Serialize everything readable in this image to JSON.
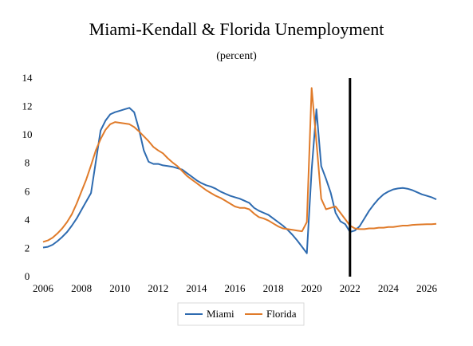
{
  "chart_data": {
    "type": "line",
    "title": "Miami-Kendall & Florida Unemployment",
    "subtitle": "(percent)",
    "xlabel": "",
    "ylabel": "",
    "xlim": [
      2006,
      2026.5
    ],
    "ylim": [
      0,
      14
    ],
    "x_ticks": [
      "2006",
      "2008",
      "2010",
      "2012",
      "2014",
      "2016",
      "2018",
      "2020",
      "2022",
      "2024",
      "2026"
    ],
    "y_ticks": [
      "0",
      "2",
      "4",
      "6",
      "8",
      "10",
      "12",
      "14"
    ],
    "grid": false,
    "legend_position": "bottom",
    "vertical_marker_x": 2022,
    "series": [
      {
        "name": "Miami",
        "color": "#2e6bb0",
        "points": [
          [
            2006.0,
            2.05
          ],
          [
            2006.25,
            2.1
          ],
          [
            2006.5,
            2.25
          ],
          [
            2006.75,
            2.5
          ],
          [
            2007.0,
            2.8
          ],
          [
            2007.25,
            3.15
          ],
          [
            2007.5,
            3.6
          ],
          [
            2007.75,
            4.1
          ],
          [
            2008.0,
            4.7
          ],
          [
            2008.25,
            5.3
          ],
          [
            2008.5,
            5.9
          ],
          [
            2008.75,
            8.1
          ],
          [
            2009.0,
            10.3
          ],
          [
            2009.25,
            11.0
          ],
          [
            2009.5,
            11.45
          ],
          [
            2009.75,
            11.6
          ],
          [
            2010.0,
            11.7
          ],
          [
            2010.25,
            11.8
          ],
          [
            2010.5,
            11.9
          ],
          [
            2010.75,
            11.6
          ],
          [
            2011.0,
            10.4
          ],
          [
            2011.25,
            8.9
          ],
          [
            2011.5,
            8.1
          ],
          [
            2011.75,
            7.95
          ],
          [
            2012.0,
            7.95
          ],
          [
            2012.25,
            7.85
          ],
          [
            2012.5,
            7.8
          ],
          [
            2012.75,
            7.75
          ],
          [
            2013.0,
            7.65
          ],
          [
            2013.25,
            7.55
          ],
          [
            2013.5,
            7.3
          ],
          [
            2013.75,
            7.05
          ],
          [
            2014.0,
            6.8
          ],
          [
            2014.25,
            6.6
          ],
          [
            2014.5,
            6.45
          ],
          [
            2014.75,
            6.35
          ],
          [
            2015.0,
            6.2
          ],
          [
            2015.25,
            6.0
          ],
          [
            2015.5,
            5.85
          ],
          [
            2015.75,
            5.7
          ],
          [
            2016.0,
            5.6
          ],
          [
            2016.25,
            5.5
          ],
          [
            2016.5,
            5.35
          ],
          [
            2016.75,
            5.2
          ],
          [
            2017.0,
            4.85
          ],
          [
            2017.25,
            4.65
          ],
          [
            2017.5,
            4.5
          ],
          [
            2017.75,
            4.35
          ],
          [
            2018.0,
            4.1
          ],
          [
            2018.25,
            3.85
          ],
          [
            2018.5,
            3.6
          ],
          [
            2018.75,
            3.3
          ],
          [
            2019.0,
            2.95
          ],
          [
            2019.25,
            2.55
          ],
          [
            2019.5,
            2.1
          ],
          [
            2019.75,
            1.65
          ],
          [
            2020.0,
            7.5
          ],
          [
            2020.25,
            11.8
          ],
          [
            2020.5,
            7.8
          ],
          [
            2020.75,
            6.9
          ],
          [
            2021.0,
            5.9
          ],
          [
            2021.25,
            4.5
          ],
          [
            2021.5,
            3.9
          ],
          [
            2021.75,
            3.7
          ],
          [
            2022.0,
            3.15
          ],
          [
            2022.25,
            3.25
          ],
          [
            2022.5,
            3.55
          ],
          [
            2022.75,
            4.1
          ],
          [
            2023.0,
            4.65
          ],
          [
            2023.25,
            5.1
          ],
          [
            2023.5,
            5.5
          ],
          [
            2023.75,
            5.8
          ],
          [
            2024.0,
            6.0
          ],
          [
            2024.25,
            6.15
          ],
          [
            2024.5,
            6.22
          ],
          [
            2024.75,
            6.25
          ],
          [
            2025.0,
            6.2
          ],
          [
            2025.25,
            6.1
          ],
          [
            2025.5,
            5.95
          ],
          [
            2025.75,
            5.8
          ],
          [
            2026.0,
            5.7
          ],
          [
            2026.25,
            5.6
          ],
          [
            2026.5,
            5.45
          ]
        ]
      },
      {
        "name": "Florida",
        "color": "#e07b2a",
        "points": [
          [
            2006.0,
            2.45
          ],
          [
            2006.25,
            2.55
          ],
          [
            2006.5,
            2.75
          ],
          [
            2006.75,
            3.05
          ],
          [
            2007.0,
            3.4
          ],
          [
            2007.25,
            3.85
          ],
          [
            2007.5,
            4.4
          ],
          [
            2007.75,
            5.15
          ],
          [
            2008.0,
            6.0
          ],
          [
            2008.25,
            6.85
          ],
          [
            2008.5,
            7.85
          ],
          [
            2008.75,
            8.9
          ],
          [
            2009.0,
            9.7
          ],
          [
            2009.25,
            10.35
          ],
          [
            2009.5,
            10.75
          ],
          [
            2009.75,
            10.9
          ],
          [
            2010.0,
            10.85
          ],
          [
            2010.25,
            10.8
          ],
          [
            2010.5,
            10.75
          ],
          [
            2010.75,
            10.55
          ],
          [
            2011.0,
            10.25
          ],
          [
            2011.25,
            9.9
          ],
          [
            2011.5,
            9.55
          ],
          [
            2011.75,
            9.15
          ],
          [
            2012.0,
            8.9
          ],
          [
            2012.25,
            8.7
          ],
          [
            2012.5,
            8.35
          ],
          [
            2012.75,
            8.05
          ],
          [
            2013.0,
            7.8
          ],
          [
            2013.25,
            7.45
          ],
          [
            2013.5,
            7.1
          ],
          [
            2013.75,
            6.85
          ],
          [
            2014.0,
            6.6
          ],
          [
            2014.25,
            6.35
          ],
          [
            2014.5,
            6.1
          ],
          [
            2014.75,
            5.9
          ],
          [
            2015.0,
            5.7
          ],
          [
            2015.25,
            5.55
          ],
          [
            2015.5,
            5.35
          ],
          [
            2015.75,
            5.15
          ],
          [
            2016.0,
            4.95
          ],
          [
            2016.25,
            4.85
          ],
          [
            2016.5,
            4.85
          ],
          [
            2016.75,
            4.75
          ],
          [
            2017.0,
            4.45
          ],
          [
            2017.25,
            4.2
          ],
          [
            2017.5,
            4.1
          ],
          [
            2017.75,
            3.95
          ],
          [
            2018.0,
            3.75
          ],
          [
            2018.25,
            3.55
          ],
          [
            2018.5,
            3.4
          ],
          [
            2018.75,
            3.35
          ],
          [
            2019.0,
            3.3
          ],
          [
            2019.25,
            3.25
          ],
          [
            2019.5,
            3.2
          ],
          [
            2019.75,
            3.85
          ],
          [
            2020.0,
            13.3
          ],
          [
            2020.25,
            9.5
          ],
          [
            2020.5,
            5.5
          ],
          [
            2020.75,
            4.75
          ],
          [
            2021.0,
            4.85
          ],
          [
            2021.25,
            4.95
          ],
          [
            2021.5,
            4.5
          ],
          [
            2021.75,
            4.05
          ],
          [
            2022.0,
            3.6
          ],
          [
            2022.25,
            3.4
          ],
          [
            2022.5,
            3.35
          ],
          [
            2022.75,
            3.35
          ],
          [
            2023.0,
            3.4
          ],
          [
            2023.25,
            3.4
          ],
          [
            2023.5,
            3.45
          ],
          [
            2023.75,
            3.45
          ],
          [
            2024.0,
            3.5
          ],
          [
            2024.25,
            3.5
          ],
          [
            2024.5,
            3.55
          ],
          [
            2024.75,
            3.6
          ],
          [
            2025.0,
            3.6
          ],
          [
            2025.25,
            3.65
          ],
          [
            2025.5,
            3.67
          ],
          [
            2025.75,
            3.68
          ],
          [
            2026.0,
            3.7
          ],
          [
            2026.25,
            3.7
          ],
          [
            2026.5,
            3.72
          ]
        ]
      }
    ]
  }
}
